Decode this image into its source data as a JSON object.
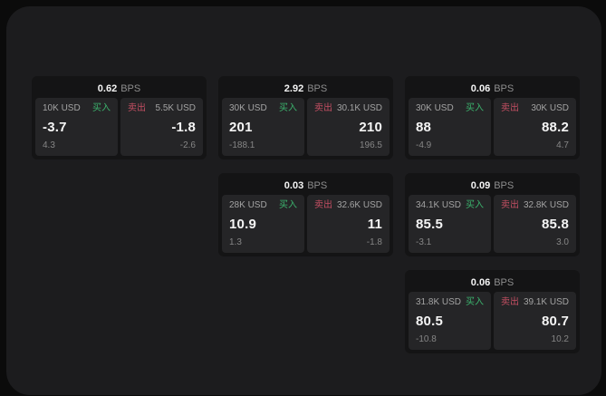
{
  "theme": {
    "outer_bg": "#0b0b0b",
    "panel_bg": "#1c1c1e",
    "card_bg": "#141415",
    "tile_bg": "#252527",
    "text_primary": "#f5f5f5",
    "text_secondary": "#8d8d8d",
    "text_label": "#a3a3a3",
    "text_muted": "#868686",
    "buy_color": "#3cb46e",
    "sell_color": "#c44f63"
  },
  "labels": {
    "bps_unit": "BPS",
    "buy": "买入",
    "sell": "卖出"
  },
  "cards": [
    {
      "row": 1,
      "col": 1,
      "bps": "0.62",
      "buy": {
        "size": "10K USD",
        "price": "-3.7",
        "delta": "4.3"
      },
      "sell": {
        "size": "5.5K USD",
        "price": "-1.8",
        "delta": "-2.6"
      }
    },
    {
      "row": 1,
      "col": 2,
      "bps": "2.92",
      "buy": {
        "size": "30K USD",
        "price": "201",
        "delta": "-188.1"
      },
      "sell": {
        "size": "30.1K USD",
        "price": "210",
        "delta": "196.5"
      }
    },
    {
      "row": 1,
      "col": 3,
      "bps": "0.06",
      "buy": {
        "size": "30K USD",
        "price": "88",
        "delta": "-4.9"
      },
      "sell": {
        "size": "30K USD",
        "price": "88.2",
        "delta": "4.7"
      }
    },
    {
      "row": 2,
      "col": 2,
      "bps": "0.03",
      "buy": {
        "size": "28K USD",
        "price": "10.9",
        "delta": "1.3"
      },
      "sell": {
        "size": "32.6K USD",
        "price": "11",
        "delta": "-1.8"
      }
    },
    {
      "row": 2,
      "col": 3,
      "bps": "0.09",
      "buy": {
        "size": "34.1K USD",
        "price": "85.5",
        "delta": "-3.1"
      },
      "sell": {
        "size": "32.8K USD",
        "price": "85.8",
        "delta": "3.0"
      }
    },
    {
      "row": 3,
      "col": 3,
      "bps": "0.06",
      "buy": {
        "size": "31.8K USD",
        "price": "80.5",
        "delta": "-10.8"
      },
      "sell": {
        "size": "39.1K USD",
        "price": "80.7",
        "delta": "10.2"
      }
    }
  ]
}
